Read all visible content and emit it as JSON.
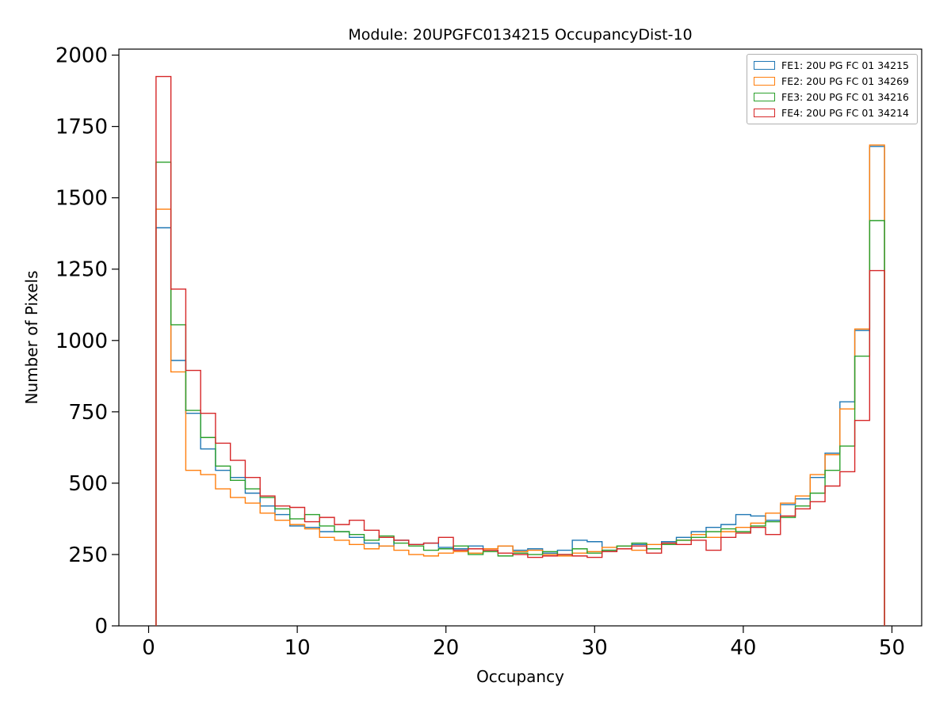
{
  "chart_data": {
    "type": "step-histogram",
    "title": "Module: 20UPGFC0134215 OccupancyDist-10",
    "xlabel": "Occupancy",
    "ylabel": "Number of Pixels",
    "xlim": [
      -2,
      52
    ],
    "ylim": [
      0,
      2021
    ],
    "xticks": [
      0,
      10,
      20,
      30,
      40,
      50
    ],
    "yticks": [
      0,
      250,
      500,
      750,
      1000,
      1250,
      1500,
      1750,
      2000
    ],
    "bin_start": 0.5,
    "bin_width": 1,
    "grid": false,
    "legend_position": "upper right",
    "series": [
      {
        "name": "FE1: 20U PG FC 01 34215",
        "color": "#1f77b4",
        "values": [
          1395,
          930,
          745,
          620,
          545,
          520,
          465,
          420,
          390,
          350,
          345,
          330,
          330,
          310,
          290,
          280,
          300,
          285,
          290,
          275,
          270,
          280,
          270,
          280,
          265,
          270,
          255,
          265,
          300,
          295,
          265,
          280,
          285,
          270,
          295,
          310,
          330,
          345,
          355,
          390,
          385,
          370,
          425,
          445,
          520,
          605,
          785,
          1035,
          1680
        ]
      },
      {
        "name": "FE2: 20U PG FC 01 34269",
        "color": "#ff7f0e",
        "values": [
          1460,
          890,
          545,
          530,
          480,
          450,
          430,
          395,
          370,
          355,
          340,
          310,
          300,
          285,
          270,
          280,
          265,
          250,
          245,
          255,
          260,
          255,
          270,
          280,
          260,
          265,
          250,
          245,
          255,
          260,
          275,
          280,
          265,
          285,
          290,
          300,
          320,
          310,
          330,
          345,
          360,
          395,
          430,
          455,
          530,
          600,
          760,
          1040,
          1685
        ]
      },
      {
        "name": "FE3: 20U PG FC 01 34216",
        "color": "#2ca02c",
        "values": [
          1625,
          1055,
          755,
          660,
          560,
          510,
          480,
          450,
          410,
          375,
          390,
          350,
          330,
          320,
          300,
          315,
          290,
          280,
          265,
          270,
          280,
          250,
          260,
          245,
          255,
          250,
          260,
          250,
          270,
          255,
          265,
          280,
          290,
          270,
          285,
          300,
          310,
          330,
          340,
          330,
          350,
          365,
          380,
          420,
          465,
          545,
          630,
          945,
          1420
        ]
      },
      {
        "name": "FE4: 20U PG FC 01 34214",
        "color": "#d62728",
        "values": [
          1925,
          1180,
          895,
          745,
          640,
          580,
          520,
          455,
          420,
          415,
          365,
          380,
          355,
          370,
          335,
          310,
          300,
          285,
          290,
          310,
          265,
          270,
          265,
          255,
          250,
          240,
          245,
          250,
          245,
          240,
          260,
          270,
          280,
          255,
          290,
          285,
          300,
          265,
          310,
          325,
          345,
          320,
          385,
          410,
          435,
          490,
          540,
          720,
          1245
        ]
      }
    ]
  }
}
